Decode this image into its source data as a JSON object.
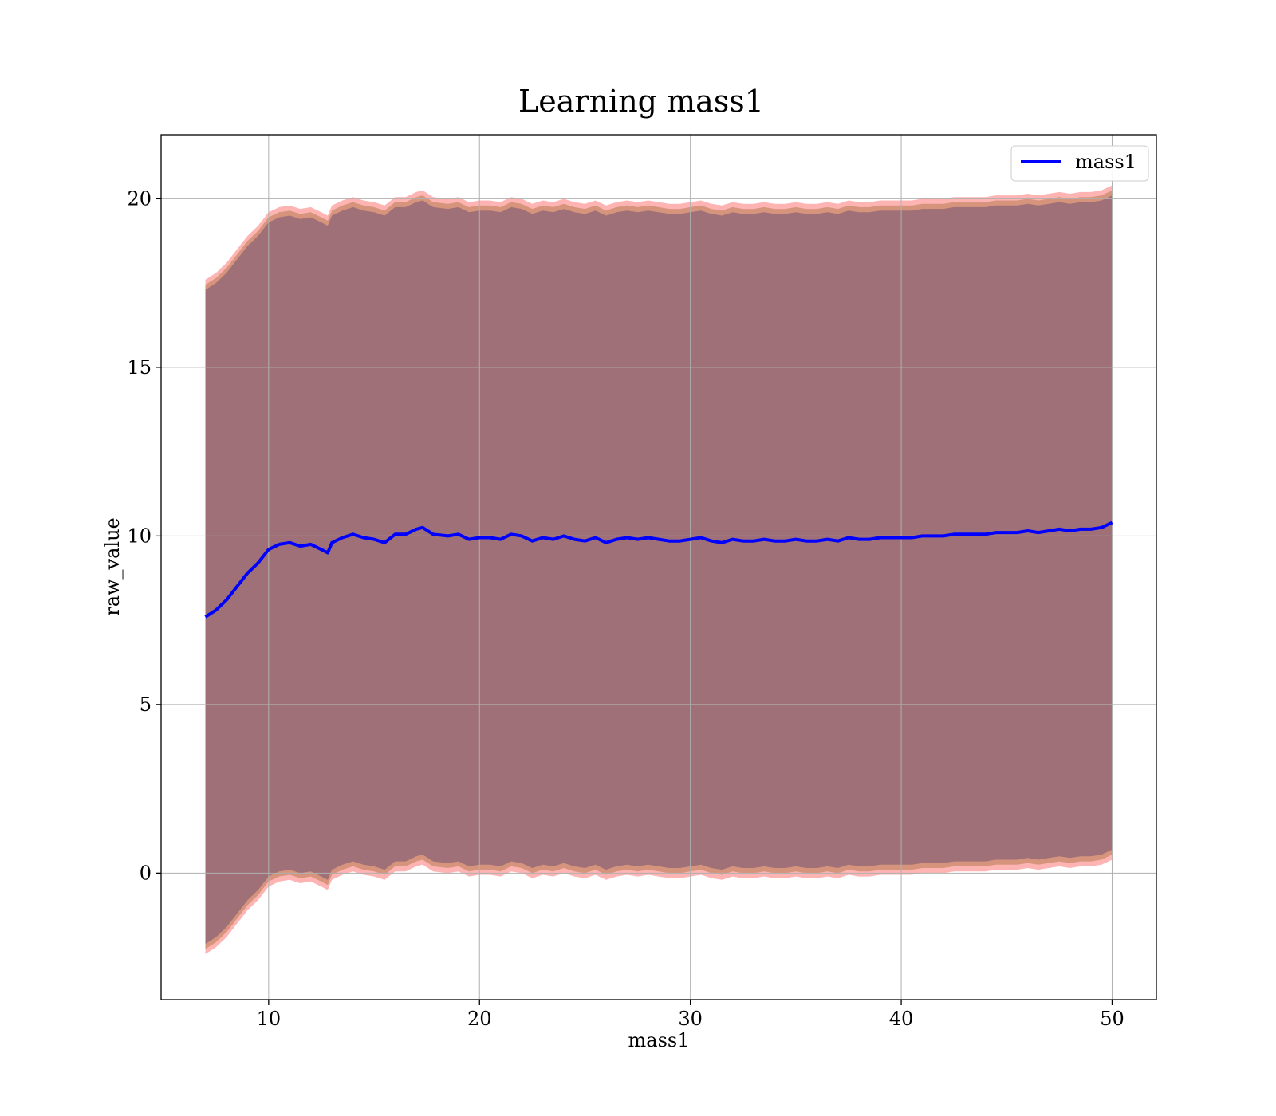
{
  "chart_data": {
    "type": "line",
    "title": "Learning mass1",
    "xlabel": "mass1",
    "ylabel": "raw_value",
    "xlim": [
      4.9,
      52.1
    ],
    "ylim": [
      -3.75,
      21.9
    ],
    "xticks": [
      10,
      20,
      30,
      40,
      50
    ],
    "yticks": [
      0,
      5,
      10,
      15,
      20
    ],
    "grid": true,
    "legend_position": "upper right",
    "colors": {
      "line": "#0000ff",
      "band_outer": "#ff9b9b",
      "band_middle": "#c98a6a",
      "band_inner": "#a07078",
      "grid": "#b0b0b0",
      "axes": "#000000"
    },
    "series": [
      {
        "name": "mass1",
        "x": [
          7,
          7.5,
          8,
          8.5,
          9,
          9.5,
          10,
          10.5,
          11,
          11.5,
          12,
          12.5,
          12.8,
          13,
          13.5,
          14,
          14.5,
          15,
          15.5,
          16,
          16.5,
          17,
          17.3,
          17.8,
          18.5,
          19,
          19.5,
          20,
          20.5,
          21,
          21.5,
          22,
          22.5,
          23,
          23.5,
          24,
          24.5,
          25,
          25.5,
          26,
          26.5,
          27,
          27.5,
          28,
          28.5,
          29,
          29.5,
          30,
          30.5,
          31,
          31.5,
          32,
          32.5,
          33,
          33.5,
          34,
          34.5,
          35,
          35.5,
          36,
          36.5,
          37,
          37.5,
          38,
          38.5,
          39,
          39.5,
          40,
          40.5,
          41,
          41.5,
          42,
          42.5,
          43,
          43.5,
          44,
          44.5,
          45,
          45.5,
          46,
          46.5,
          47,
          47.5,
          48,
          48.5,
          49,
          49.5,
          50
        ],
        "y": [
          7.6,
          7.8,
          8.1,
          8.5,
          8.9,
          9.2,
          9.6,
          9.75,
          9.8,
          9.7,
          9.75,
          9.6,
          9.5,
          9.8,
          9.95,
          10.05,
          9.95,
          9.9,
          9.8,
          10.05,
          10.05,
          10.2,
          10.25,
          10.05,
          10.0,
          10.05,
          9.9,
          9.95,
          9.95,
          9.9,
          10.05,
          10.0,
          9.85,
          9.95,
          9.9,
          10.0,
          9.9,
          9.85,
          9.95,
          9.8,
          9.9,
          9.95,
          9.9,
          9.95,
          9.9,
          9.85,
          9.85,
          9.9,
          9.95,
          9.85,
          9.8,
          9.9,
          9.85,
          9.85,
          9.9,
          9.85,
          9.85,
          9.9,
          9.85,
          9.85,
          9.9,
          9.85,
          9.95,
          9.9,
          9.9,
          9.95,
          9.95,
          9.95,
          9.95,
          10.0,
          10.0,
          10.0,
          10.05,
          10.05,
          10.05,
          10.05,
          10.1,
          10.1,
          10.1,
          10.15,
          10.1,
          10.15,
          10.2,
          10.15,
          10.2,
          10.2,
          10.25,
          10.4
        ]
      }
    ],
    "bands": [
      {
        "label": "",
        "half_width": 10.0,
        "color": "#ff9b9b",
        "opacity": 0.75
      },
      {
        "label": "",
        "half_width": 9.85,
        "color": "#c98a6a",
        "opacity": 0.75
      },
      {
        "label": "",
        "half_width": 9.7,
        "color": "#a07078",
        "opacity": 1.0
      }
    ]
  }
}
